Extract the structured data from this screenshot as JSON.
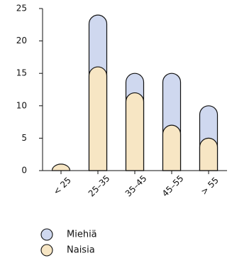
{
  "chart_data": {
    "type": "bar",
    "stacked": true,
    "rounded_bars": true,
    "categories": [
      "< 25",
      "25–35",
      "35–45",
      "45–55",
      "> 55"
    ],
    "series": [
      {
        "name": "Naisia",
        "values": [
          1,
          16,
          12,
          7,
          5
        ],
        "color": "#f7e6c4"
      },
      {
        "name": "Miehiä",
        "values": [
          0,
          8,
          3,
          8,
          5
        ],
        "color": "#cfd8ef"
      }
    ],
    "ylim": [
      0,
      25
    ],
    "yticks": [
      0,
      5,
      10,
      15,
      20,
      25
    ],
    "xlabel": "",
    "ylabel": "",
    "title": "",
    "grid": false,
    "legend_position": "bottom-left",
    "legend_order": [
      "Miehiä",
      "Naisia"
    ],
    "stroke_color": "#111111"
  }
}
